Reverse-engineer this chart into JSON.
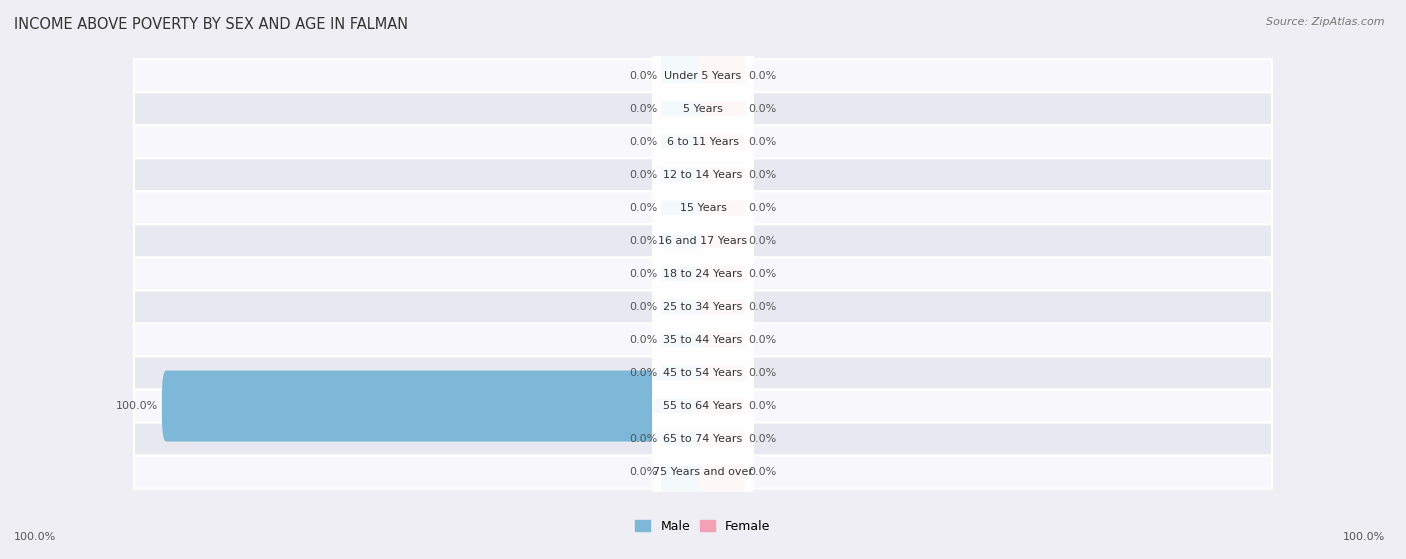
{
  "title": "INCOME ABOVE POVERTY BY SEX AND AGE IN FALMAN",
  "source": "Source: ZipAtlas.com",
  "categories": [
    "Under 5 Years",
    "5 Years",
    "6 to 11 Years",
    "12 to 14 Years",
    "15 Years",
    "16 and 17 Years",
    "18 to 24 Years",
    "25 to 34 Years",
    "35 to 44 Years",
    "45 to 54 Years",
    "55 to 64 Years",
    "65 to 74 Years",
    "75 Years and over"
  ],
  "male_values": [
    0.0,
    0.0,
    0.0,
    0.0,
    0.0,
    0.0,
    0.0,
    0.0,
    0.0,
    0.0,
    100.0,
    0.0,
    0.0
  ],
  "female_values": [
    0.0,
    0.0,
    0.0,
    0.0,
    0.0,
    0.0,
    0.0,
    0.0,
    0.0,
    0.0,
    0.0,
    0.0,
    0.0
  ],
  "male_color": "#7db8d8",
  "female_color": "#f4a0b5",
  "male_label": "Male",
  "female_label": "Female",
  "xlim": 100.0,
  "min_bar_width": 7.0,
  "bar_height": 0.55,
  "bg_color": "#eeeef4",
  "row_bg_light": "#f8f8fc",
  "row_bg_dark": "#e8e8f0",
  "title_fontsize": 10.5,
  "source_fontsize": 8,
  "label_fontsize": 8,
  "category_fontsize": 8,
  "legend_fontsize": 9
}
